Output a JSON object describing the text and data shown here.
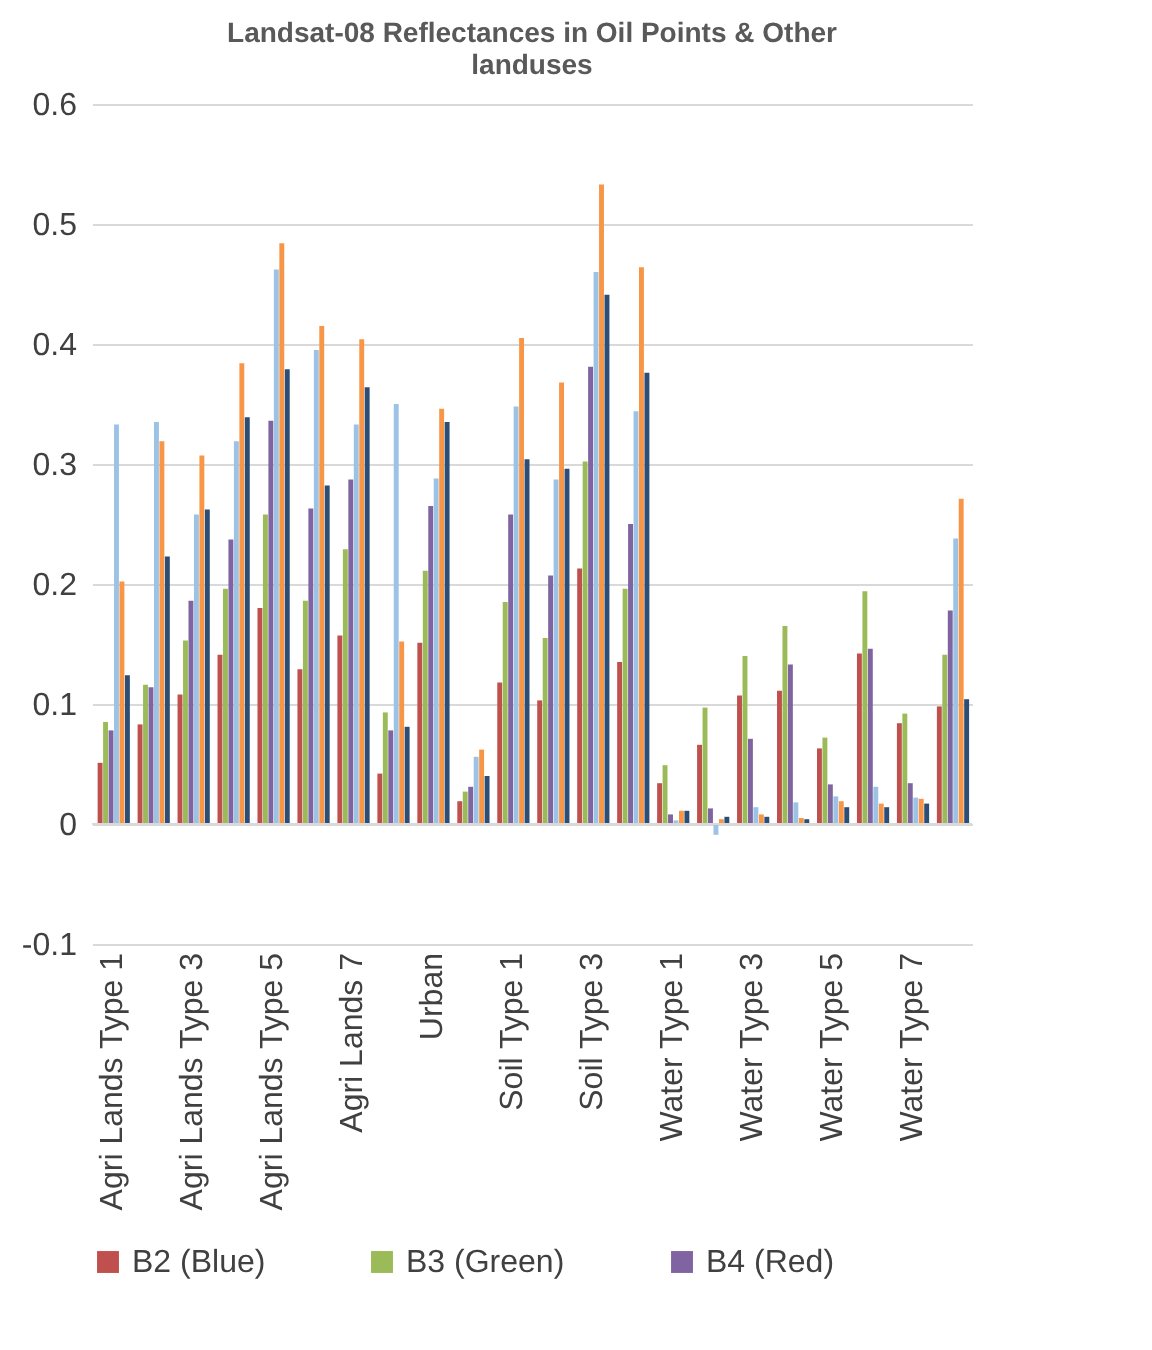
{
  "chart_data": {
    "type": "bar",
    "title": "Landsat-08 Reflectances in Oil Points & Other landuses",
    "categories": [
      "Agri Lands Type 1",
      null,
      "Agri Lands Type 3",
      null,
      "Agri Lands Type 5",
      null,
      "Agri Lands 7",
      null,
      "Urban",
      null,
      "Soil Type 1",
      null,
      "Soil Type 3",
      null,
      "Water Type 1",
      null,
      "Water Type 3",
      null,
      "Water Type 5",
      null,
      "Water Type 7",
      null
    ],
    "series": [
      {
        "name": "B2 (Blue)",
        "color": "#c0504d",
        "values": [
          0.051,
          0.083,
          0.108,
          0.141,
          0.18,
          0.129,
          0.157,
          0.042,
          0.151,
          0.019,
          0.118,
          0.103,
          0.213,
          0.135,
          0.034,
          0.066,
          0.107,
          0.111,
          0.063,
          0.142,
          0.084,
          0.098
        ]
      },
      {
        "name": "B3 (Green)",
        "color": "#9bbb59",
        "values": [
          0.085,
          0.116,
          0.153,
          0.196,
          0.258,
          0.186,
          0.229,
          0.093,
          0.211,
          0.027,
          0.185,
          0.155,
          0.302,
          0.196,
          0.049,
          0.097,
          0.14,
          0.165,
          0.072,
          0.194,
          0.092,
          0.141
        ]
      },
      {
        "name": "B4 (Red)",
        "color": "#8064a2",
        "values": [
          0.078,
          0.114,
          0.186,
          0.237,
          0.336,
          0.263,
          0.287,
          0.078,
          0.265,
          0.031,
          0.258,
          0.207,
          0.381,
          0.25,
          0.008,
          0.013,
          0.071,
          0.133,
          0.033,
          0.146,
          0.034,
          0.178
        ]
      },
      {
        "color": "#9cc2e5",
        "values": [
          0.333,
          0.335,
          0.258,
          0.319,
          0.462,
          0.395,
          0.333,
          0.35,
          0.288,
          0.056,
          0.348,
          0.287,
          0.46,
          0.344,
          0.003,
          -0.009,
          0.014,
          0.018,
          0.023,
          0.031,
          0.022,
          0.238
        ]
      },
      {
        "color": "#f79646",
        "values": [
          0.202,
          0.319,
          0.307,
          0.384,
          0.484,
          0.415,
          0.404,
          0.152,
          0.346,
          0.062,
          0.405,
          0.368,
          0.533,
          0.464,
          0.011,
          0.004,
          0.008,
          0.005,
          0.019,
          0.017,
          0.021,
          0.271
        ]
      },
      {
        "color": "#2c4d75",
        "values": [
          0.124,
          0.223,
          0.262,
          0.339,
          0.379,
          0.282,
          0.364,
          0.081,
          0.335,
          0.04,
          0.304,
          0.296,
          0.441,
          0.376,
          0.011,
          0.006,
          0.006,
          0.004,
          0.014,
          0.014,
          0.017,
          0.104
        ]
      }
    ],
    "ylim": [
      -0.1,
      0.6
    ],
    "yticks": [
      -0.1,
      0,
      0.1,
      0.2,
      0.3,
      0.4,
      0.5,
      0.6
    ],
    "grid": "y",
    "legend": "bottom"
  }
}
